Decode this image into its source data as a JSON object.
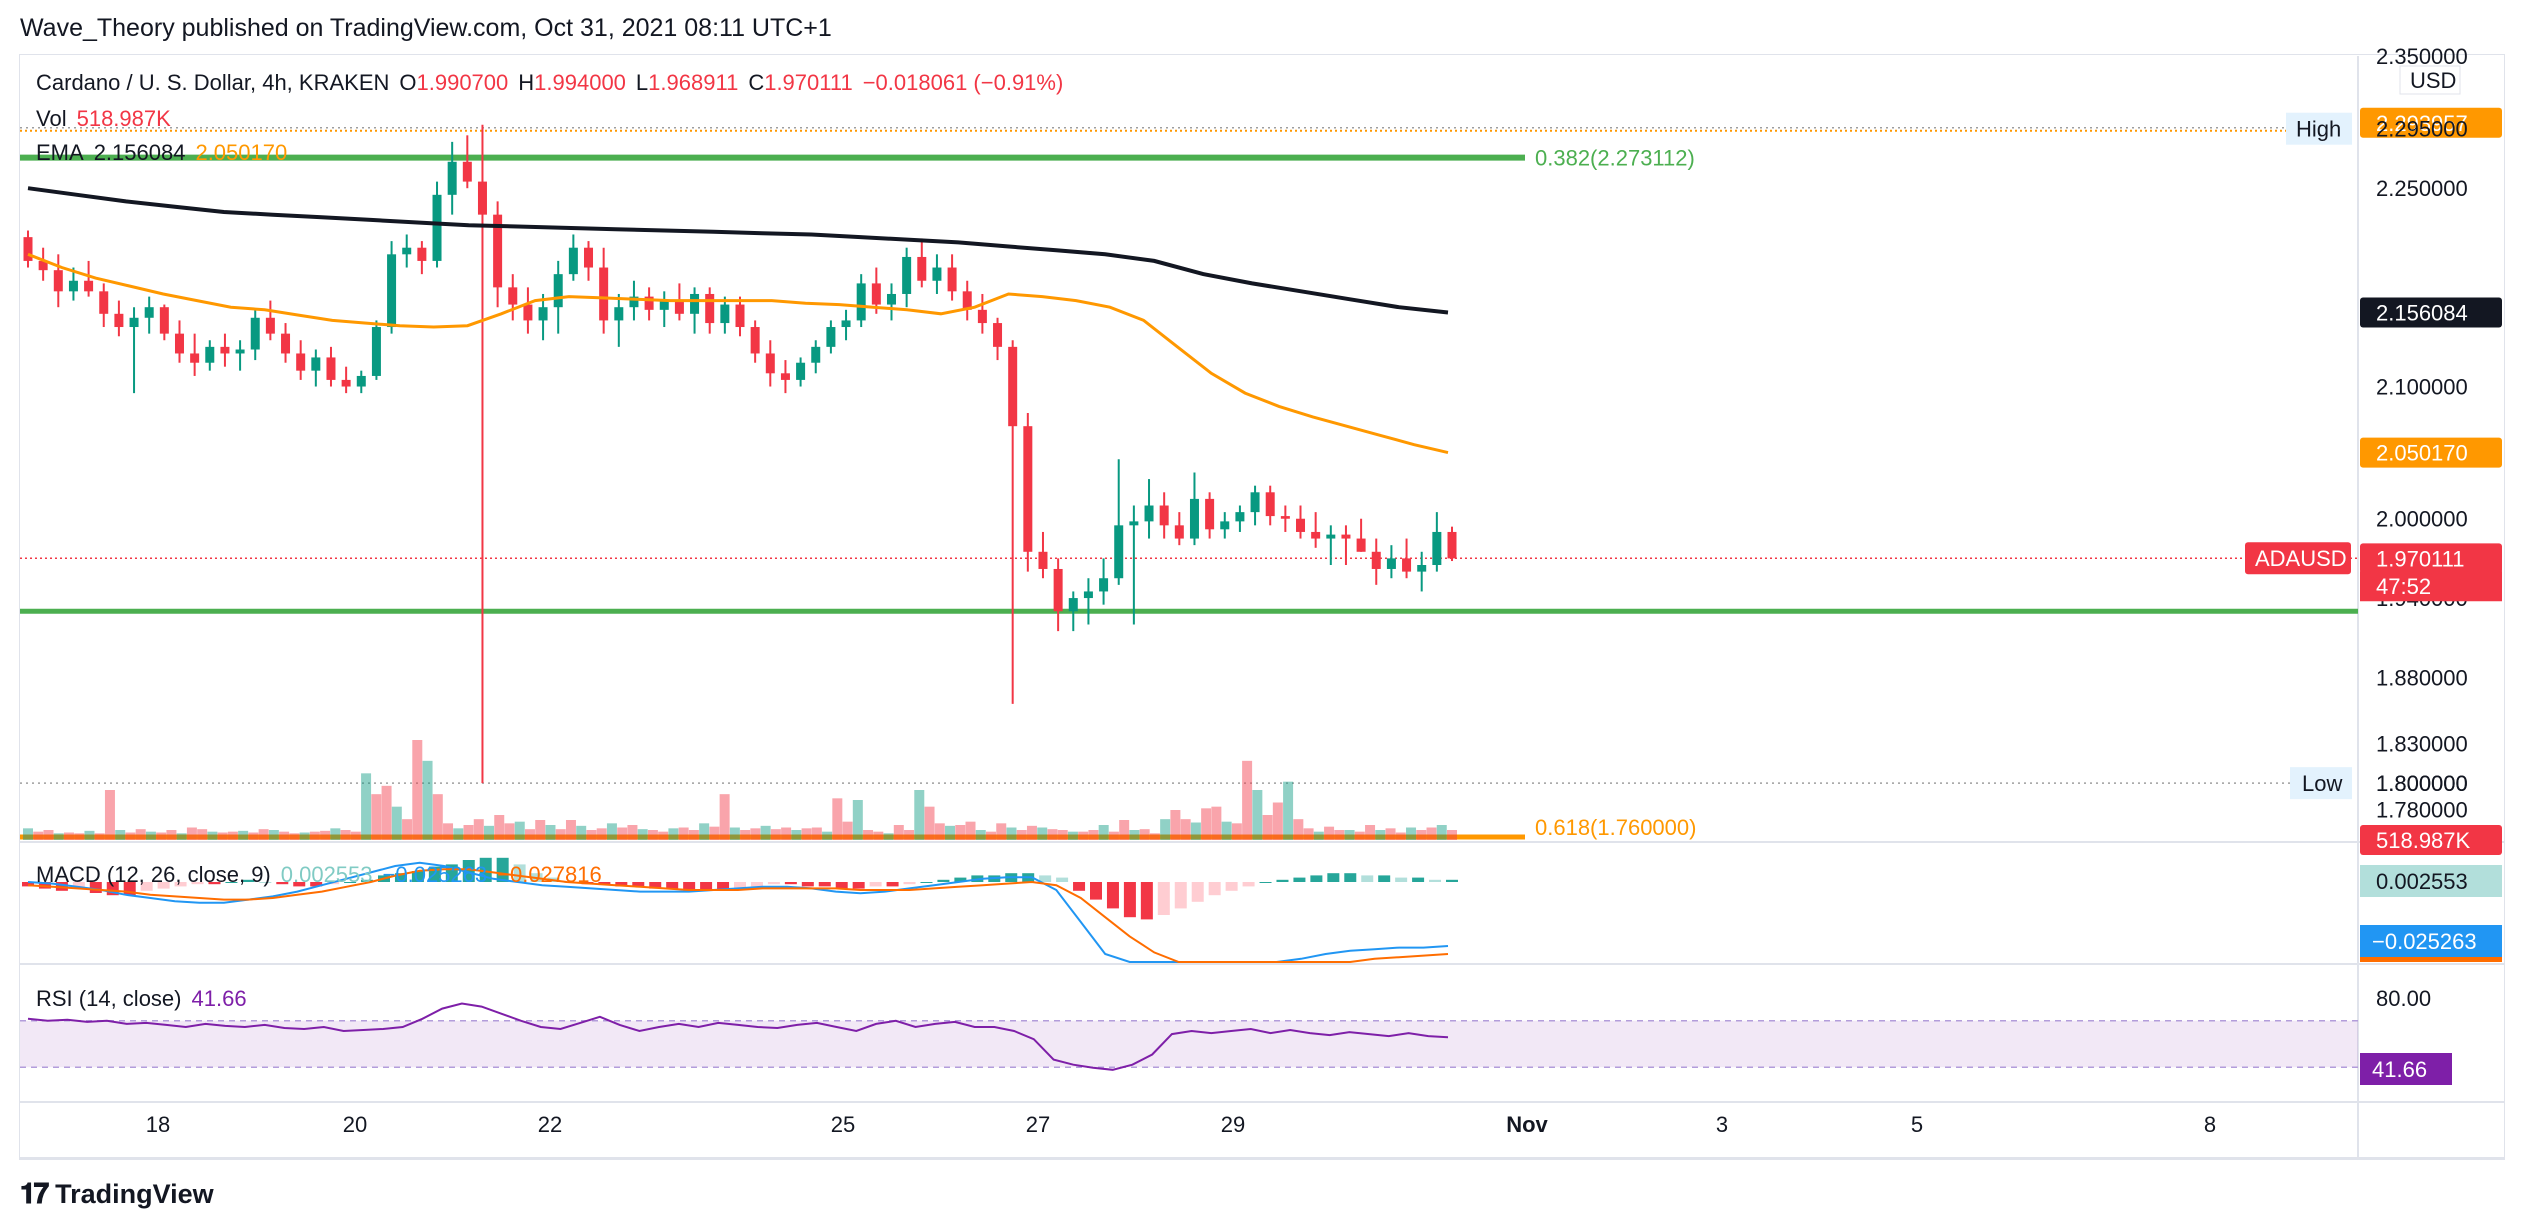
{
  "publish_line": "Wave_Theory published on TradingView.com, Oct 31, 2021 08:11 UTC+1",
  "footer": {
    "brand": "TradingView"
  },
  "colors": {
    "up": "#089981",
    "down": "#f23645",
    "ema200": "#131722",
    "ema50": "#ff9800",
    "fib_green": "#4caf50",
    "macd_line": "#2196f3",
    "signal_line": "#ff6d00",
    "rsi": "#7e1fa8"
  },
  "header": {
    "symbol": "Cardano / U. S. Dollar, 4h, KRAKEN",
    "o_label": "O",
    "o_value": "1.990700",
    "h_label": "H",
    "h_value": "1.994000",
    "l_label": "L",
    "l_value": "1.968911",
    "c_label": "C",
    "c_value": "1.970111",
    "change": "−0.018061 (−0.91%)",
    "vol_label": "Vol",
    "vol_value": "518.987K",
    "ema_label": "EMA",
    "ema_value_1": "2.156084",
    "ema_value_2": "2.050170"
  },
  "macd_legend": {
    "label": "MACD (12, 26, close, 9)",
    "v1": "0.002553",
    "v2": "−0.025263",
    "v3": "−0.027816"
  },
  "rsi_legend": {
    "label": "RSI (14, close)",
    "value": "41.66"
  },
  "fib": {
    "upper": "0.382(2.273112)",
    "lower": "0.618(1.760000)"
  },
  "markers": {
    "high": "High",
    "low": "Low",
    "symbol_tag": "ADAUSD",
    "countdown": "47:52",
    "currency": "USD"
  },
  "chart_data": {
    "type": "candlestick",
    "title": "Cardano / U. S. Dollar, 4h, KRAKEN",
    "price_axis": {
      "ticks": [
        "2.350000",
        "2.295000",
        "2.250000",
        "2.100000",
        "2.000000",
        "1.940000",
        "1.880000",
        "1.830000",
        "1.800000",
        "1.780000"
      ],
      "tick_values": [
        2.35,
        2.295,
        2.25,
        2.1,
        2.0,
        1.94,
        1.88,
        1.83,
        1.8,
        1.78
      ],
      "badges": [
        {
          "text": "2.293957",
          "value": 2.2995,
          "color": "#ff9800"
        },
        {
          "text": "2.295000",
          "value": 2.295,
          "color": "#ffffff"
        },
        {
          "text": "2.156084",
          "value": 2.156,
          "color": "#131722"
        },
        {
          "text": "2.050170",
          "value": 2.05,
          "color": "#ff9800"
        },
        {
          "text": "1.970111",
          "value": 1.97,
          "color": "#f23645"
        },
        {
          "text": "1.800000",
          "value": 1.8,
          "color": "#ffffff"
        },
        {
          "text": "518.987K",
          "value": 1.757,
          "color": "#f23645"
        }
      ]
    },
    "x_axis_ticks": [
      "18",
      "20",
      "22",
      "25",
      "27",
      "29",
      "Nov",
      "3",
      "5",
      "8"
    ],
    "fib_levels": [
      2.273112,
      1.76
    ],
    "support_level": 1.93,
    "high_level": 2.295,
    "low_level": 1.8,
    "last_price": 1.970111,
    "macd_axis": {
      "badges": [
        {
          "text": "0.002553",
          "color": "#b2dfdb"
        },
        {
          "text": "−0.025263",
          "color": "#2196f3"
        }
      ]
    },
    "rsi_axis": {
      "ticks": [
        "80.00"
      ],
      "badge": "41.66",
      "upper": 70,
      "lower": 30
    },
    "candles": [
      [
        2.213,
        2.218,
        2.19,
        2.195
      ],
      [
        2.195,
        2.205,
        2.18,
        2.188
      ],
      [
        2.188,
        2.2,
        2.16,
        2.172
      ],
      [
        2.172,
        2.19,
        2.165,
        2.18
      ],
      [
        2.18,
        2.195,
        2.168,
        2.172
      ],
      [
        2.172,
        2.178,
        2.145,
        2.155
      ],
      [
        2.155,
        2.165,
        2.138,
        2.145
      ],
      [
        2.145,
        2.16,
        2.095,
        2.152
      ],
      [
        2.152,
        2.168,
        2.14,
        2.16
      ],
      [
        2.16,
        2.162,
        2.135,
        2.14
      ],
      [
        2.14,
        2.15,
        2.118,
        2.125
      ],
      [
        2.125,
        2.14,
        2.108,
        2.118
      ],
      [
        2.118,
        2.135,
        2.112,
        2.13
      ],
      [
        2.13,
        2.14,
        2.115,
        2.125
      ],
      [
        2.125,
        2.135,
        2.112,
        2.128
      ],
      [
        2.128,
        2.158,
        2.12,
        2.152
      ],
      [
        2.152,
        2.165,
        2.135,
        2.14
      ],
      [
        2.14,
        2.148,
        2.118,
        2.125
      ],
      [
        2.125,
        2.135,
        2.105,
        2.112
      ],
      [
        2.112,
        2.128,
        2.1,
        2.122
      ],
      [
        2.122,
        2.13,
        2.1,
        2.105
      ],
      [
        2.105,
        2.115,
        2.095,
        2.1
      ],
      [
        2.1,
        2.112,
        2.095,
        2.108
      ],
      [
        2.108,
        2.15,
        2.105,
        2.145
      ],
      [
        2.145,
        2.21,
        2.14,
        2.2
      ],
      [
        2.2,
        2.215,
        2.19,
        2.205
      ],
      [
        2.205,
        2.21,
        2.185,
        2.195
      ],
      [
        2.195,
        2.255,
        2.19,
        2.245
      ],
      [
        2.245,
        2.285,
        2.23,
        2.27
      ],
      [
        2.27,
        2.29,
        2.25,
        2.255
      ],
      [
        2.255,
        2.298,
        1.8,
        2.23
      ],
      [
        2.23,
        2.24,
        2.16,
        2.175
      ],
      [
        2.175,
        2.185,
        2.15,
        2.162
      ],
      [
        2.162,
        2.175,
        2.14,
        2.15
      ],
      [
        2.15,
        2.17,
        2.135,
        2.16
      ],
      [
        2.16,
        2.195,
        2.14,
        2.185
      ],
      [
        2.185,
        2.215,
        2.18,
        2.205
      ],
      [
        2.205,
        2.21,
        2.18,
        2.19
      ],
      [
        2.19,
        2.205,
        2.14,
        2.15
      ],
      [
        2.15,
        2.17,
        2.13,
        2.16
      ],
      [
        2.16,
        2.18,
        2.15,
        2.168
      ],
      [
        2.168,
        2.175,
        2.15,
        2.158
      ],
      [
        2.158,
        2.172,
        2.145,
        2.165
      ],
      [
        2.165,
        2.178,
        2.15,
        2.155
      ],
      [
        2.155,
        2.175,
        2.14,
        2.17
      ],
      [
        2.17,
        2.175,
        2.14,
        2.148
      ],
      [
        2.148,
        2.168,
        2.14,
        2.162
      ],
      [
        2.162,
        2.168,
        2.138,
        2.145
      ],
      [
        2.145,
        2.15,
        2.118,
        2.125
      ],
      [
        2.125,
        2.135,
        2.1,
        2.11
      ],
      [
        2.11,
        2.12,
        2.095,
        2.105
      ],
      [
        2.105,
        2.122,
        2.1,
        2.118
      ],
      [
        2.118,
        2.135,
        2.11,
        2.13
      ],
      [
        2.13,
        2.15,
        2.125,
        2.145
      ],
      [
        2.145,
        2.158,
        2.135,
        2.15
      ],
      [
        2.15,
        2.185,
        2.145,
        2.178
      ],
      [
        2.178,
        2.19,
        2.155,
        2.162
      ],
      [
        2.162,
        2.178,
        2.15,
        2.17
      ],
      [
        2.17,
        2.205,
        2.16,
        2.198
      ],
      [
        2.198,
        2.212,
        2.175,
        2.18
      ],
      [
        2.18,
        2.2,
        2.17,
        2.19
      ],
      [
        2.19,
        2.2,
        2.165,
        2.172
      ],
      [
        2.172,
        2.18,
        2.15,
        2.158
      ],
      [
        2.158,
        2.17,
        2.14,
        2.148
      ],
      [
        2.148,
        2.152,
        2.12,
        2.13
      ],
      [
        2.13,
        2.135,
        1.86,
        2.07
      ],
      [
        2.07,
        2.08,
        1.96,
        1.975
      ],
      [
        1.975,
        1.99,
        1.955,
        1.962
      ],
      [
        1.962,
        1.97,
        1.915,
        1.93
      ],
      [
        1.93,
        1.945,
        1.915,
        1.94
      ],
      [
        1.94,
        1.955,
        1.92,
        1.945
      ],
      [
        1.945,
        1.97,
        1.935,
        1.955
      ],
      [
        1.955,
        2.045,
        1.95,
        1.995
      ],
      [
        1.995,
        2.01,
        1.92,
        1.998
      ],
      [
        1.998,
        2.03,
        1.985,
        2.01
      ],
      [
        2.01,
        2.02,
        1.985,
        1.995
      ],
      [
        1.995,
        2.005,
        1.98,
        1.985
      ],
      [
        1.985,
        2.035,
        1.98,
        2.015
      ],
      [
        2.015,
        2.02,
        1.985,
        1.992
      ],
      [
        1.992,
        2.005,
        1.985,
        1.998
      ],
      [
        1.998,
        2.01,
        1.99,
        2.005
      ],
      [
        2.005,
        2.025,
        1.995,
        2.02
      ],
      [
        2.02,
        2.025,
        1.995,
        2.002
      ],
      [
        2.002,
        2.01,
        1.99,
        2.0
      ],
      [
        2.0,
        2.01,
        1.985,
        1.99
      ],
      [
        1.99,
        2.005,
        1.978,
        1.985
      ],
      [
        1.985,
        1.995,
        1.965,
        1.988
      ],
      [
        1.988,
        1.995,
        1.965,
        1.985
      ],
      [
        1.985,
        2.0,
        1.975,
        1.975
      ],
      [
        1.975,
        1.985,
        1.95,
        1.962
      ],
      [
        1.962,
        1.98,
        1.955,
        1.97
      ],
      [
        1.97,
        1.985,
        1.955,
        1.96
      ],
      [
        1.96,
        1.975,
        1.945,
        1.965
      ],
      [
        1.965,
        2.005,
        1.96,
        1.99
      ],
      [
        1.99,
        1.994,
        1.968,
        1.97
      ]
    ],
    "ema50": [
      2.2,
      2.19,
      2.182,
      2.176,
      2.17,
      2.165,
      2.16,
      2.158,
      2.154,
      2.15,
      2.148,
      2.146,
      2.145,
      2.146,
      2.155,
      2.165,
      2.168,
      2.167,
      2.166,
      2.165,
      2.165,
      2.165,
      2.165,
      2.163,
      2.162,
      2.16,
      2.158,
      2.155,
      2.16,
      2.17,
      2.168,
      2.165,
      2.16,
      2.15,
      2.13,
      2.11,
      2.095,
      2.085,
      2.077,
      2.07,
      2.063,
      2.056,
      2.05
    ],
    "ema200": [
      2.25,
      2.245,
      2.24,
      2.236,
      2.232,
      2.23,
      2.228,
      2.226,
      2.224,
      2.222,
      2.221,
      2.22,
      2.219,
      2.218,
      2.217,
      2.216,
      2.215,
      2.213,
      2.211,
      2.209,
      2.206,
      2.203,
      2.2,
      2.195,
      2.185,
      2.178,
      2.172,
      2.166,
      2.16,
      2.156
    ],
    "volume": [
      14,
      10,
      12,
      8,
      9,
      8,
      11,
      8,
      60,
      12,
      9,
      13,
      10,
      9,
      12,
      8,
      15,
      13,
      10,
      9,
      10,
      11,
      9,
      13,
      12,
      10,
      8,
      9,
      10,
      11,
      14,
      12,
      10,
      80,
      55,
      65,
      40,
      25,
      120,
      95,
      55,
      20,
      14,
      18,
      25,
      17,
      30,
      20,
      22,
      13,
      24,
      18,
      13,
      24,
      17,
      12,
      14,
      20,
      15,
      18,
      13,
      12,
      10,
      14,
      15,
      12,
      20,
      16,
      55,
      15,
      12,
      14,
      17,
      13,
      15,
      12,
      14,
      15,
      10,
      50,
      22,
      48,
      12,
      10,
      8,
      18,
      12,
      60,
      40,
      20,
      17,
      18,
      22,
      12,
      10,
      20,
      15,
      12,
      17,
      15,
      13,
      12,
      10,
      10,
      12,
      18,
      10,
      24,
      12,
      13,
      8,
      25,
      36,
      25,
      21,
      38,
      40,
      22,
      20,
      95,
      60,
      30,
      45,
      70,
      25,
      14,
      10,
      16,
      12,
      12,
      10,
      18,
      12,
      14,
      9,
      15,
      12,
      15,
      18,
      12
    ],
    "macd_hist": [
      -2,
      -3,
      -4,
      -3,
      -5,
      -6,
      -6,
      -4,
      -3,
      -2,
      -1,
      -1,
      0,
      1,
      0,
      -1,
      -2,
      -2,
      -1,
      0,
      1,
      3,
      4,
      5,
      7,
      8,
      10,
      11,
      11,
      8,
      4,
      2,
      0,
      -1,
      -1,
      -2,
      -2,
      -3,
      -3,
      -4,
      -4,
      -4,
      -3,
      -2,
      -1,
      -1,
      -2,
      -2,
      -3,
      -3,
      -2,
      -2,
      -1,
      0,
      1,
      2,
      3,
      3,
      4,
      4,
      3,
      2,
      -4,
      -8,
      -12,
      -16,
      -17,
      -15,
      -12,
      -9,
      -6,
      -4,
      -2,
      0,
      1,
      2,
      3,
      4,
      4,
      3,
      3,
      2,
      2,
      1,
      1
    ],
    "macd_line": [
      0,
      -1,
      -3,
      -5,
      -8,
      -10,
      -12,
      -13,
      -13,
      -11,
      -9,
      -6,
      -2,
      2,
      6,
      10,
      12,
      10,
      6,
      2,
      0,
      -2,
      -3,
      -4,
      -5,
      -6,
      -6,
      -6,
      -5,
      -4,
      -3,
      -3,
      -4,
      -6,
      -7,
      -6,
      -4,
      -2,
      0,
      2,
      3,
      3,
      -5,
      -25,
      -45,
      -55,
      -60,
      -62,
      -60,
      -57,
      -55,
      -52,
      -48,
      -45,
      -43,
      -42,
      -41,
      -41,
      -40
    ],
    "signal_line": [
      -2,
      -3,
      -4,
      -5,
      -6,
      -8,
      -9,
      -10,
      -11,
      -11,
      -10,
      -8,
      -6,
      -3,
      0,
      4,
      7,
      8,
      8,
      6,
      4,
      2,
      0,
      -1,
      -2,
      -3,
      -4,
      -5,
      -5,
      -5,
      -4,
      -4,
      -4,
      -4,
      -5,
      -5,
      -5,
      -4,
      -3,
      -2,
      -1,
      0,
      -2,
      -10,
      -22,
      -34,
      -44,
      -52,
      -58,
      -60,
      -60,
      -58,
      -55,
      -52,
      -50,
      -48,
      -47,
      -46,
      -45
    ],
    "rsi": [
      60,
      58,
      59,
      57,
      58,
      55,
      56,
      54,
      52,
      55,
      53,
      52,
      54,
      51,
      50,
      52,
      48,
      49,
      50,
      52,
      60,
      70,
      75,
      72,
      65,
      58,
      52,
      50,
      56,
      62,
      54,
      48,
      52,
      55,
      52,
      56,
      54,
      52,
      51,
      54,
      56,
      52,
      48,
      55,
      58,
      52,
      55,
      57,
      52,
      52,
      48,
      40,
      20,
      15,
      12,
      10,
      15,
      25,
      45,
      48,
      46,
      48,
      50,
      46,
      49,
      46,
      44,
      47,
      45,
      43,
      46,
      43,
      42
    ]
  }
}
